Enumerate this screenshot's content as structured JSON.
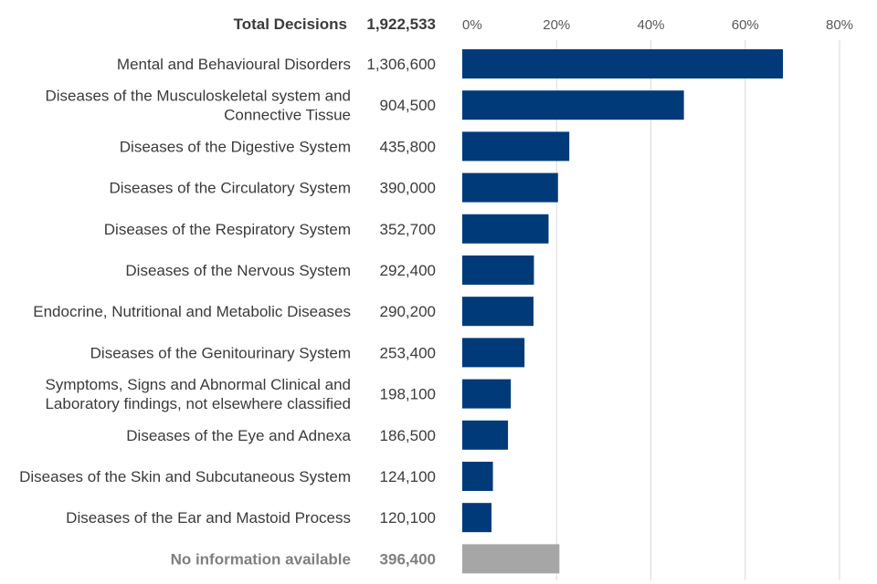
{
  "chart_data": {
    "type": "bar",
    "orientation": "horizontal",
    "header": {
      "label": "Total Decisions",
      "value": "1,922,533"
    },
    "x_ticks": [
      "0%",
      "20%",
      "40%",
      "60%",
      "80%"
    ],
    "xlim": [
      0,
      80
    ],
    "grid": true,
    "colors": {
      "primary": "#003A78",
      "no_info": "#A6A6A6",
      "grid": "#D9D9D9"
    },
    "categories": [
      {
        "lines": [
          "Mental and Behavioural Disorders"
        ],
        "count": "1,306,600",
        "percent": 68.0,
        "style": "primary"
      },
      {
        "lines": [
          "Diseases of the Musculoskeletal system and",
          "Connective Tissue"
        ],
        "count": "904,500",
        "percent": 47.0,
        "style": "primary"
      },
      {
        "lines": [
          "Diseases of the Digestive System"
        ],
        "count": "435,800",
        "percent": 22.7,
        "style": "primary"
      },
      {
        "lines": [
          "Diseases of the Circulatory System"
        ],
        "count": "390,000",
        "percent": 20.3,
        "style": "primary"
      },
      {
        "lines": [
          "Diseases of the Respiratory System"
        ],
        "count": "352,700",
        "percent": 18.3,
        "style": "primary"
      },
      {
        "lines": [
          "Diseases of the Nervous System"
        ],
        "count": "292,400",
        "percent": 15.2,
        "style": "primary"
      },
      {
        "lines": [
          "Endocrine, Nutritional and Metabolic Diseases"
        ],
        "count": "290,200",
        "percent": 15.1,
        "style": "primary"
      },
      {
        "lines": [
          "Diseases of the Genitourinary System"
        ],
        "count": "253,400",
        "percent": 13.2,
        "style": "primary"
      },
      {
        "lines": [
          "Symptoms, Signs and Abnormal Clinical and",
          "Laboratory findings, not elsewhere classified"
        ],
        "count": "198,100",
        "percent": 10.3,
        "style": "primary"
      },
      {
        "lines": [
          "Diseases of the Eye and Adnexa"
        ],
        "count": "186,500",
        "percent": 9.7,
        "style": "primary"
      },
      {
        "lines": [
          "Diseases of the Skin and Subcutaneous System"
        ],
        "count": "124,100",
        "percent": 6.5,
        "style": "primary"
      },
      {
        "lines": [
          "Diseases of the Ear and Mastoid Process"
        ],
        "count": "120,100",
        "percent": 6.2,
        "style": "primary"
      },
      {
        "lines": [
          "No information available"
        ],
        "count": "396,400",
        "percent": 20.6,
        "style": "no_info"
      }
    ]
  }
}
